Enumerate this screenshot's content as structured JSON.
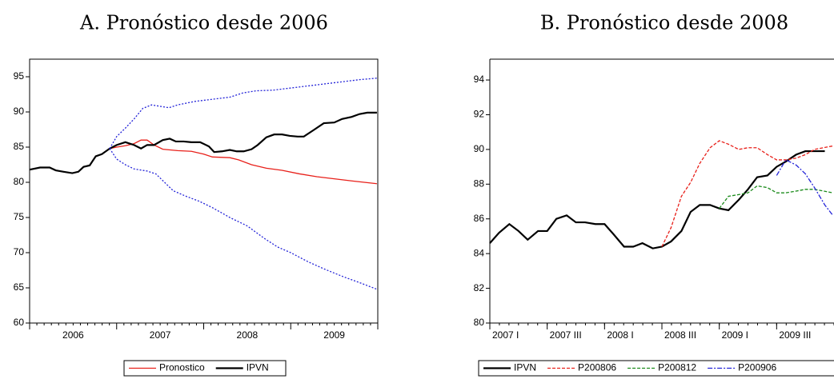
{
  "chart_data": [
    {
      "type": "line",
      "title": "A. Pronóstico desde 2006",
      "xlim": [
        2006,
        2010
      ],
      "ylim": [
        60,
        97.5
      ],
      "xticks": [
        {
          "value": 2006.5,
          "label": "2006"
        },
        {
          "value": 2007.5,
          "label": "2007"
        },
        {
          "value": 2008.5,
          "label": "2008"
        },
        {
          "value": 2009.5,
          "label": "2009"
        }
      ],
      "yticks": [
        60,
        65,
        70,
        75,
        80,
        85,
        90,
        95
      ],
      "series": [
        {
          "name": "Pronostico",
          "color": "#e8201a",
          "x": [
            2006.92,
            2007.0,
            2007.1,
            2007.2,
            2007.28,
            2007.35,
            2007.43,
            2007.53,
            2007.7,
            2007.86,
            2008.0,
            2008.1,
            2008.3,
            2008.4,
            2008.55,
            2008.72,
            2008.9,
            2009.1,
            2009.3,
            2009.5,
            2009.7,
            2009.99
          ],
          "values": [
            84.8,
            85.0,
            85.2,
            85.5,
            86.0,
            86.0,
            85.3,
            84.7,
            84.5,
            84.4,
            84.0,
            83.6,
            83.5,
            83.2,
            82.5,
            82.0,
            81.7,
            81.2,
            80.8,
            80.5,
            80.2,
            79.8
          ]
        },
        {
          "name": "IPVN",
          "color": "#000000",
          "weight": "bold",
          "x": [
            2006.0,
            2006.12,
            2006.23,
            2006.3,
            2006.39,
            2006.49,
            2006.56,
            2006.62,
            2006.69,
            2006.76,
            2006.83,
            2006.92,
            2007.0,
            2007.1,
            2007.2,
            2007.28,
            2007.35,
            2007.43,
            2007.53,
            2007.61,
            2007.68,
            2007.77,
            2007.86,
            2007.96,
            2008.06,
            2008.12,
            2008.21,
            2008.3,
            2008.38,
            2008.46,
            2008.55,
            2008.62,
            2008.72,
            2008.81,
            2008.9,
            2008.99,
            2009.08,
            2009.15,
            2009.26,
            2009.38,
            2009.5,
            2009.59,
            2009.7,
            2009.79,
            2009.88,
            2009.99
          ],
          "values": [
            81.8,
            82.1,
            82.1,
            81.7,
            81.5,
            81.3,
            81.5,
            82.2,
            82.4,
            83.7,
            84.0,
            84.8,
            85.3,
            85.7,
            85.3,
            84.8,
            85.3,
            85.3,
            86.0,
            86.2,
            85.8,
            85.8,
            85.7,
            85.7,
            85.1,
            84.3,
            84.4,
            84.6,
            84.4,
            84.4,
            84.7,
            85.3,
            86.4,
            86.8,
            86.8,
            86.6,
            86.5,
            86.5,
            87.4,
            88.4,
            88.5,
            89.0,
            89.3,
            89.7,
            89.9,
            89.9
          ]
        },
        {
          "color": "#2323d8",
          "dash": "dotted",
          "x": [
            2006.92,
            2007.0,
            2007.1,
            2007.2,
            2007.3,
            2007.4,
            2007.5,
            2007.6,
            2007.7,
            2007.9,
            2008.1,
            2008.3,
            2008.45,
            2008.6,
            2008.8,
            2009.0,
            2009.2,
            2009.4,
            2009.6,
            2009.8,
            2009.99
          ],
          "values": [
            84.8,
            86.5,
            87.7,
            89.0,
            90.5,
            91.0,
            90.8,
            90.6,
            91.0,
            91.5,
            91.8,
            92.1,
            92.7,
            93.0,
            93.1,
            93.4,
            93.7,
            94.0,
            94.3,
            94.6,
            94.8
          ]
        },
        {
          "color": "#2323d8",
          "dash": "dotted",
          "x": [
            2006.92,
            2007.0,
            2007.1,
            2007.2,
            2007.35,
            2007.45,
            2007.55,
            2007.65,
            2007.8,
            2007.95,
            2008.1,
            2008.3,
            2008.5,
            2008.7,
            2008.85,
            2009.0,
            2009.2,
            2009.4,
            2009.6,
            2009.8,
            2009.99
          ],
          "values": [
            84.8,
            83.3,
            82.5,
            81.9,
            81.6,
            81.2,
            80.0,
            78.8,
            78.0,
            77.3,
            76.4,
            75.0,
            73.8,
            72.0,
            70.8,
            70.0,
            68.7,
            67.6,
            66.6,
            65.7,
            64.8
          ]
        }
      ]
    },
    {
      "type": "line",
      "title": "B. Pronóstico desde 2008",
      "xlim": [
        2007,
        2010
      ],
      "ylim": [
        80,
        95.2
      ],
      "xticks": [
        {
          "value": 2007,
          "label": "2007 I"
        },
        {
          "value": 2007.5,
          "label": "2007 III"
        },
        {
          "value": 2008,
          "label": "2008 I"
        },
        {
          "value": 2008.5,
          "label": "2008 III"
        },
        {
          "value": 2009,
          "label": "2009 I"
        },
        {
          "value": 2009.5,
          "label": "2009 III"
        }
      ],
      "yticks": [
        80,
        82,
        84,
        86,
        88,
        90,
        92,
        94
      ],
      "series": [
        {
          "name": "IPVN",
          "color": "#000000",
          "weight": "bold",
          "x": [
            2007.0,
            2007.08,
            2007.17,
            2007.25,
            2007.33,
            2007.42,
            2007.5,
            2007.58,
            2007.67,
            2007.75,
            2007.83,
            2007.92,
            2008.0,
            2008.08,
            2008.17,
            2008.25,
            2008.33,
            2008.42,
            2008.5,
            2008.58,
            2008.67,
            2008.75,
            2008.83,
            2008.92,
            2009.0,
            2009.08,
            2009.17,
            2009.25,
            2009.33,
            2009.42,
            2009.5,
            2009.58,
            2009.67,
            2009.75,
            2009.83,
            2009.92
          ],
          "values": [
            84.6,
            85.2,
            85.7,
            85.3,
            84.8,
            85.3,
            85.3,
            86.0,
            86.2,
            85.8,
            85.8,
            85.7,
            85.7,
            85.1,
            84.4,
            84.4,
            84.6,
            84.3,
            84.4,
            84.7,
            85.3,
            86.4,
            86.8,
            86.8,
            86.6,
            86.5,
            87.1,
            87.7,
            88.4,
            88.5,
            89.0,
            89.3,
            89.7,
            89.9,
            89.9,
            89.9
          ]
        },
        {
          "name": "P200806",
          "color": "#e8201a",
          "dash": "dashed",
          "x": [
            2008.5,
            2008.58,
            2008.67,
            2008.75,
            2008.83,
            2008.92,
            2009.0,
            2009.08,
            2009.17,
            2009.25,
            2009.33,
            2009.42,
            2009.5,
            2009.58,
            2009.67,
            2009.75,
            2009.83,
            2009.99
          ],
          "values": [
            84.4,
            85.5,
            87.3,
            88.1,
            89.2,
            90.1,
            90.5,
            90.3,
            90.0,
            90.1,
            90.1,
            89.7,
            89.4,
            89.4,
            89.5,
            89.7,
            90.0,
            90.2
          ]
        },
        {
          "name": "P200812",
          "color": "#1a8a1a",
          "dash": "dashed",
          "x": [
            2009.0,
            2009.08,
            2009.17,
            2009.25,
            2009.33,
            2009.42,
            2009.5,
            2009.58,
            2009.67,
            2009.75,
            2009.83,
            2009.99
          ],
          "values": [
            86.6,
            87.3,
            87.4,
            87.5,
            87.9,
            87.8,
            87.5,
            87.5,
            87.6,
            87.7,
            87.7,
            87.5
          ]
        },
        {
          "name": "P200906",
          "color": "#2323d8",
          "dash": "dashdot",
          "x": [
            2009.5,
            2009.58,
            2009.67,
            2009.75,
            2009.83,
            2009.92,
            2009.99
          ],
          "values": [
            88.5,
            89.4,
            89.1,
            88.6,
            87.8,
            86.8,
            86.2
          ]
        }
      ]
    }
  ]
}
